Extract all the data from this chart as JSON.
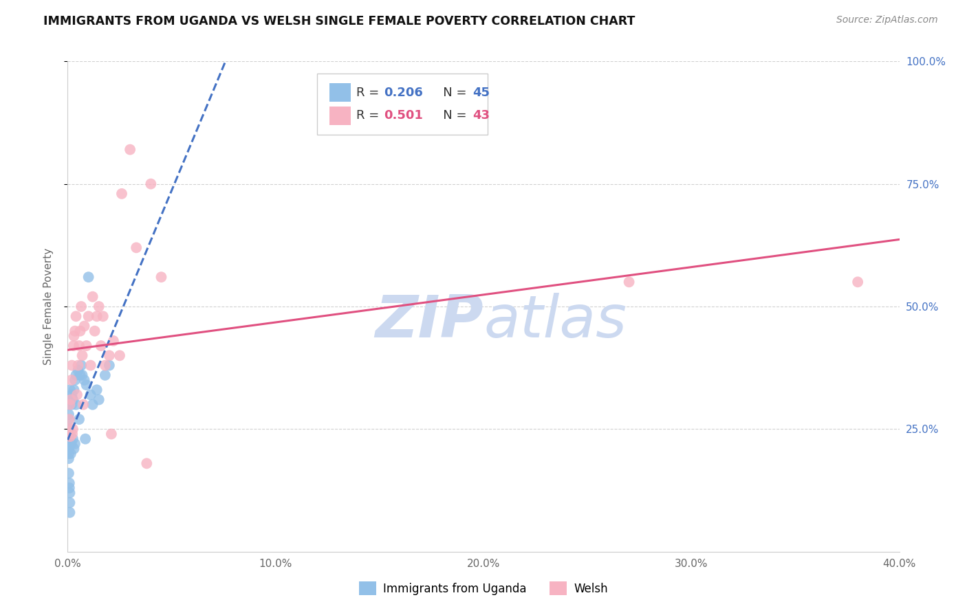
{
  "title": "IMMIGRANTS FROM UGANDA VS WELSH SINGLE FEMALE POVERTY CORRELATION CHART",
  "source": "Source: ZipAtlas.com",
  "ylabel": "Single Female Poverty",
  "r_blue": 0.206,
  "n_blue": 45,
  "r_pink": 0.501,
  "n_pink": 43,
  "blue_color": "#92c0e8",
  "pink_color": "#f7b3c2",
  "trendline_blue_color": "#4472c4",
  "trendline_pink_color": "#e05080",
  "watermark_color": "#ccd9f0",
  "background_color": "#ffffff",
  "grid_color": "#cccccc",
  "xlim": [
    0.0,
    40.0
  ],
  "ylim": [
    0.0,
    100.0
  ],
  "xtick_positions": [
    0.0,
    10.0,
    20.0,
    30.0,
    40.0
  ],
  "xticklabels": [
    "0.0%",
    "10.0%",
    "20.0%",
    "30.0%",
    "40.0%"
  ],
  "ytick_positions": [
    25.0,
    50.0,
    75.0,
    100.0
  ],
  "yticklabels": [
    "25.0%",
    "50.0%",
    "75.0%",
    "100.0%"
  ],
  "blue_scatter_x": [
    0.05,
    0.05,
    0.05,
    0.05,
    0.05,
    0.05,
    0.05,
    0.05,
    0.05,
    0.05,
    0.08,
    0.08,
    0.1,
    0.1,
    0.1,
    0.12,
    0.12,
    0.15,
    0.15,
    0.18,
    0.2,
    0.2,
    0.25,
    0.25,
    0.3,
    0.3,
    0.35,
    0.35,
    0.4,
    0.4,
    0.5,
    0.55,
    0.6,
    0.65,
    0.7,
    0.8,
    0.85,
    0.9,
    1.0,
    1.1,
    1.2,
    1.4,
    1.5,
    1.8,
    2.0
  ],
  "blue_scatter_y": [
    22.0,
    23.5,
    21.0,
    20.0,
    19.0,
    28.0,
    30.0,
    25.0,
    27.0,
    16.0,
    14.0,
    13.0,
    12.0,
    10.0,
    8.0,
    31.0,
    33.0,
    22.0,
    20.0,
    22.0,
    30.0,
    32.0,
    31.0,
    23.0,
    33.0,
    21.0,
    35.0,
    22.0,
    36.0,
    30.0,
    37.0,
    27.0,
    36.0,
    38.0,
    36.0,
    35.0,
    23.0,
    34.0,
    56.0,
    32.0,
    30.0,
    33.0,
    31.0,
    36.0,
    38.0
  ],
  "pink_scatter_x": [
    0.05,
    0.08,
    0.1,
    0.12,
    0.15,
    0.18,
    0.2,
    0.22,
    0.25,
    0.28,
    0.3,
    0.35,
    0.4,
    0.45,
    0.5,
    0.55,
    0.6,
    0.65,
    0.7,
    0.75,
    0.8,
    0.9,
    1.0,
    1.1,
    1.2,
    1.3,
    1.4,
    1.5,
    1.6,
    1.7,
    1.8,
    2.0,
    2.1,
    2.2,
    2.5,
    2.6,
    3.0,
    3.3,
    3.8,
    4.0,
    4.5,
    27.0,
    38.0
  ],
  "pink_scatter_y": [
    25.0,
    27.0,
    30.0,
    23.5,
    31.0,
    35.0,
    38.0,
    24.0,
    25.0,
    42.0,
    44.0,
    45.0,
    48.0,
    32.0,
    38.0,
    42.0,
    45.0,
    50.0,
    40.0,
    30.0,
    46.0,
    42.0,
    48.0,
    38.0,
    52.0,
    45.0,
    48.0,
    50.0,
    42.0,
    48.0,
    38.0,
    40.0,
    24.0,
    43.0,
    40.0,
    73.0,
    82.0,
    62.0,
    18.0,
    75.0,
    56.0,
    55.0,
    55.0
  ]
}
